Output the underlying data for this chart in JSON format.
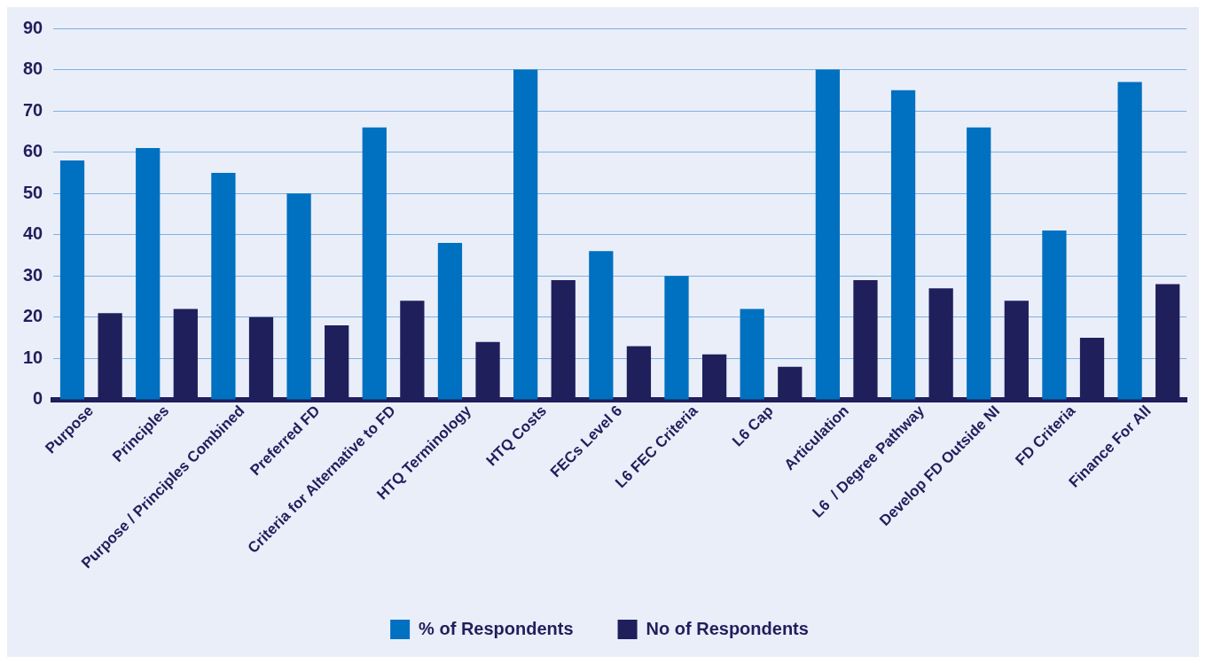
{
  "chart_data": {
    "type": "bar",
    "categories": [
      "Purpose",
      "Principles",
      "Purpose / Principles Combined",
      "Preferred FD",
      "Criteria for Alternative to FD",
      "HTQ Terminology",
      "HTQ Costs",
      "FECs Level 6",
      "L6 FEC Criteria",
      "L6 Cap",
      "Articulation",
      "L6  / Degree Pathway",
      "Develop FD Outside NI",
      "FD Criteria",
      "Finance For All"
    ],
    "series": [
      {
        "name": "% of Respondents",
        "color": "#0070c0",
        "values": [
          58,
          61,
          55,
          50,
          66,
          38,
          80,
          36,
          30,
          22,
          80,
          75,
          66,
          41,
          77
        ]
      },
      {
        "name": "No of Respondents",
        "color": "#1f1f5c",
        "values": [
          21,
          22,
          20,
          18,
          24,
          14,
          29,
          13,
          11,
          8,
          29,
          27,
          24,
          15,
          28
        ]
      }
    ],
    "ylim": [
      0,
      90
    ],
    "yticks": [
      0,
      10,
      20,
      30,
      40,
      50,
      60,
      70,
      80,
      90
    ],
    "grid": "y",
    "legend": "bottom"
  }
}
